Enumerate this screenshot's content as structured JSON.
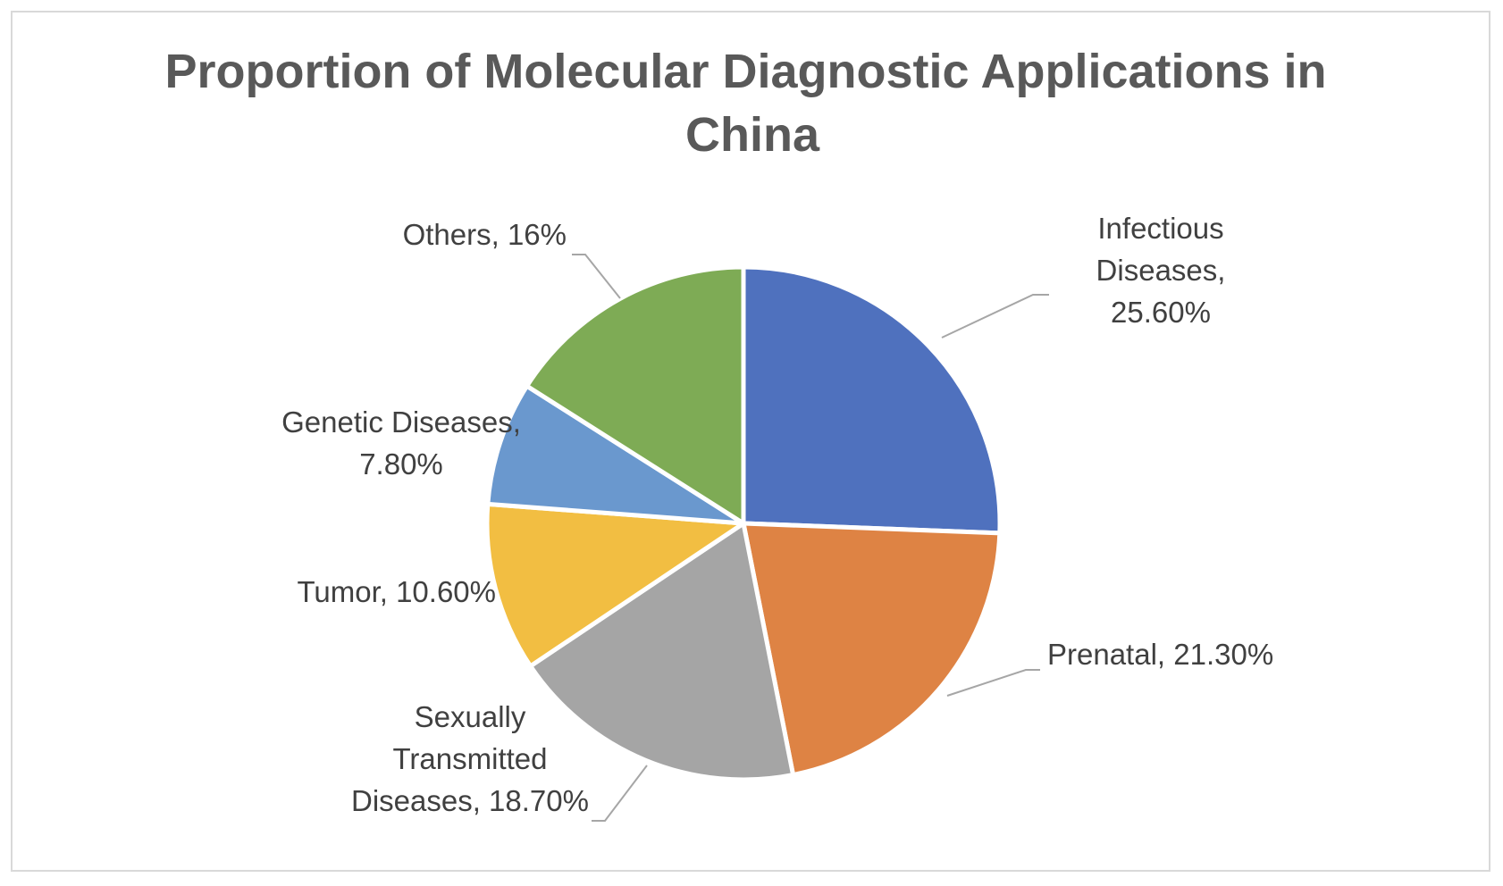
{
  "chart_data": {
    "type": "pie",
    "title": "Proportion of Molecular Diagnostic Applications in China",
    "title_lines": [
      "Proportion of Molecular Diagnostic Applications in",
      "China"
    ],
    "start_angle_deg": 0,
    "direction": "clockwise",
    "slices": [
      {
        "name": "Infectious Diseases",
        "value": 25.6,
        "label_lines": [
          "Infectious",
          "Diseases,",
          "25.60%"
        ],
        "color": "#4F71BE"
      },
      {
        "name": "Prenatal",
        "value": 21.3,
        "label_lines": [
          "Prenatal, 21.30%"
        ],
        "color": "#DE8344"
      },
      {
        "name": "Sexually Transmitted Diseases",
        "value": 18.7,
        "label_lines": [
          "Sexually",
          "Transmitted",
          "Diseases, 18.70%"
        ],
        "color": "#A5A5A5"
      },
      {
        "name": "Tumor",
        "value": 10.6,
        "label_lines": [
          "Tumor, 10.60%"
        ],
        "color": "#F2BE42"
      },
      {
        "name": "Genetic Diseases",
        "value": 7.8,
        "label_lines": [
          "Genetic Diseases,",
          "7.80%"
        ],
        "color": "#6A98CE"
      },
      {
        "name": "Others",
        "value": 16,
        "label_lines": [
          "Others, 16%"
        ],
        "color": "#7EAB55"
      }
    ],
    "legend": "none",
    "data_labels": "outside with leader lines"
  }
}
